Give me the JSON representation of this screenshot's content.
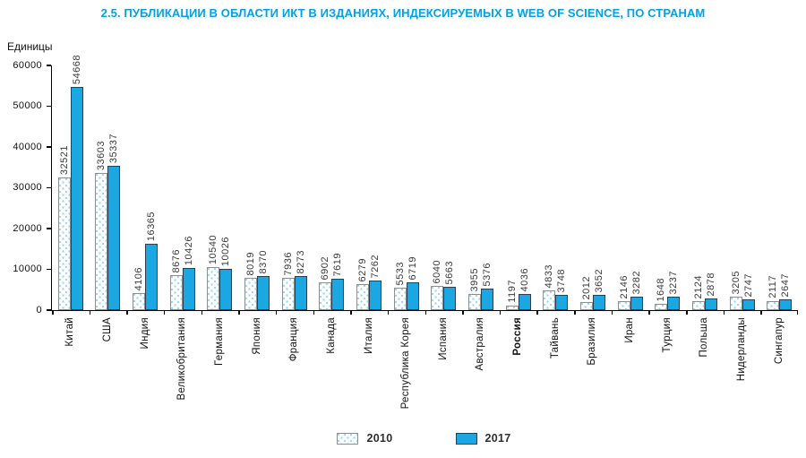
{
  "chart_data": {
    "type": "bar",
    "title": "2.5. ПУБЛИКАЦИИ В ОБЛАСТИ ИКТ В ИЗДАНИЯХ, ИНДЕКСИРУЕМЫХ В WEB OF SCIENCE, ПО СТРАНАМ",
    "ylabel": "Единицы",
    "xlabel": "",
    "ylim": [
      0,
      60000
    ],
    "yticks": [
      0,
      10000,
      20000,
      30000,
      40000,
      50000,
      60000
    ],
    "grid": false,
    "legend_position": "bottom",
    "bar_labels_rotated": true,
    "emphasis_category": "Россия",
    "categories": [
      "Китай",
      "США",
      "Индия",
      "Великобритания",
      "Германия",
      "Япония",
      "Франция",
      "Канада",
      "Италия",
      "Республика Корея",
      "Испания",
      "Австралия",
      "Россия",
      "Тайвань",
      "Бразилия",
      "Иран",
      "Турция",
      "Польша",
      "Нидерланды",
      "Сингапур"
    ],
    "series": [
      {
        "name": "2010",
        "style": "dotted-pattern",
        "values": [
          32521,
          33603,
          4106,
          8676,
          10540,
          8019,
          7936,
          6902,
          6279,
          5533,
          6040,
          3955,
          1197,
          4833,
          2012,
          2146,
          1648,
          2124,
          3205,
          2117
        ]
      },
      {
        "name": "2017",
        "style": "solid",
        "values": [
          54668,
          35337,
          16365,
          10426,
          10026,
          8370,
          8273,
          7619,
          7262,
          6719,
          5663,
          5376,
          4036,
          3748,
          3652,
          3282,
          3237,
          2878,
          2747,
          2647
        ]
      }
    ]
  },
  "colors": {
    "title_accent": "#00a2e5",
    "bar_2017_fill": "#1ba7e2",
    "bar_2017_border": "#2c3e50",
    "bar_2010_fill": "#ffffff",
    "bar_2010_dot": "#9ed7f0",
    "bar_2010_border": "#8e8e8e",
    "axis": "#000000",
    "text": "#111111"
  }
}
